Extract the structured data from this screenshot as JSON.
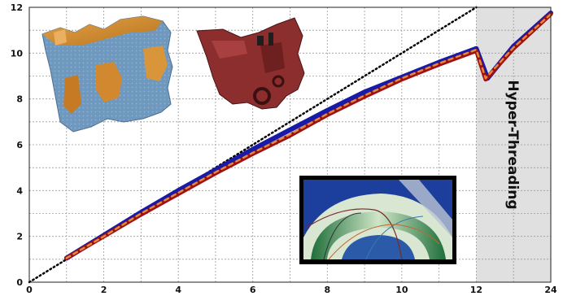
{
  "chart_data": {
    "type": "line",
    "annotation": "Hyper-Threading",
    "x_ticks": [
      "0",
      "2",
      "4",
      "6",
      "8",
      "10",
      "12",
      "24"
    ],
    "y_ticks": [
      "0",
      "2",
      "4",
      "6",
      "8",
      "10",
      "12"
    ],
    "xlim": [
      0,
      14
    ],
    "ylim": [
      0,
      12
    ],
    "hyperthreading_region": [
      12,
      14
    ],
    "grid": true,
    "series": [
      {
        "style": "ideal-dotted",
        "color": "#000000",
        "points": [
          [
            0,
            0
          ],
          [
            12,
            12
          ]
        ]
      },
      {
        "style": "blue",
        "color": "#1a1aa8",
        "points": [
          [
            1,
            1.05
          ],
          [
            2,
            2.05
          ],
          [
            3,
            3.05
          ],
          [
            4,
            4.0
          ],
          [
            5,
            4.9
          ],
          [
            6,
            5.8
          ],
          [
            7,
            6.65
          ],
          [
            8,
            7.5
          ],
          [
            9,
            8.3
          ],
          [
            10,
            8.95
          ],
          [
            11,
            9.6
          ],
          [
            12,
            10.2
          ],
          [
            12.3,
            8.9
          ],
          [
            13,
            10.3
          ],
          [
            14,
            11.75
          ]
        ]
      },
      {
        "style": "red",
        "color": "#a01010",
        "points": [
          [
            1,
            1.05
          ],
          [
            2,
            2.0
          ],
          [
            3,
            2.95
          ],
          [
            4,
            3.85
          ],
          [
            5,
            4.75
          ],
          [
            6,
            5.6
          ],
          [
            7,
            6.4
          ],
          [
            8,
            7.3
          ],
          [
            9,
            8.1
          ],
          [
            10,
            8.85
          ],
          [
            11,
            9.5
          ],
          [
            12,
            10.1
          ],
          [
            12.25,
            8.85
          ],
          [
            13,
            10.2
          ],
          [
            14,
            11.7
          ]
        ]
      },
      {
        "style": "orange-dashed",
        "color": "#e08a3a",
        "points": [
          [
            1,
            1.05
          ],
          [
            2,
            2.0
          ],
          [
            3,
            3.0
          ],
          [
            4,
            3.9
          ],
          [
            5,
            4.8
          ],
          [
            6,
            5.65
          ],
          [
            7,
            6.45
          ],
          [
            8,
            7.35
          ],
          [
            9,
            8.15
          ],
          [
            10,
            8.9
          ],
          [
            11,
            9.55
          ],
          [
            12,
            10.15
          ],
          [
            12.25,
            8.9
          ],
          [
            13,
            10.25
          ],
          [
            14,
            11.7
          ]
        ]
      }
    ]
  }
}
